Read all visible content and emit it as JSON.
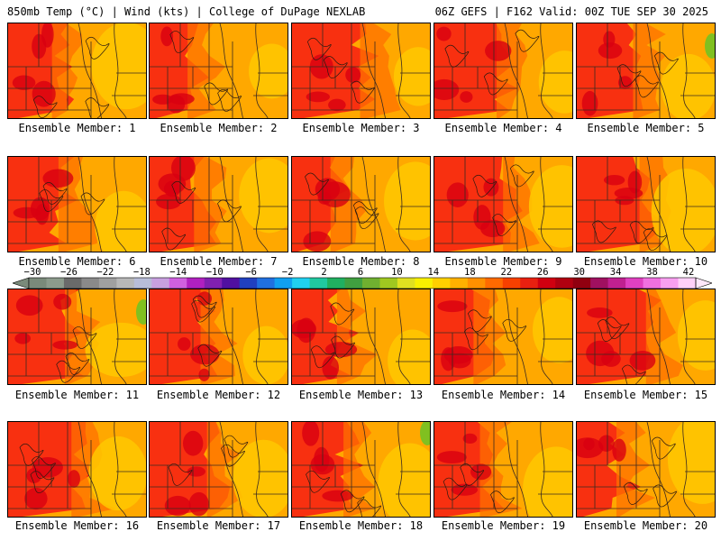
{
  "header": {
    "title_left": "850mb Temp (°C) | Wind (kts) | College of DuPage NEXLAB",
    "title_right": "06Z GEFS | F162 Valid: 00Z TUE SEP 30 2025"
  },
  "colorbar": {
    "ticks": [
      "-30",
      "-26",
      "-22",
      "-18",
      "-14",
      "-10",
      "-6",
      "-2",
      "2",
      "6",
      "10",
      "14",
      "18",
      "22",
      "26",
      "30",
      "34",
      "38",
      "42"
    ],
    "colors": [
      "#7a8a7a",
      "#8c9b8c",
      "#6a6a6a",
      "#8a8a8a",
      "#a0a0a0",
      "#b8b8b8",
      "#b8bdd8",
      "#c8a0e0",
      "#d060e0",
      "#b020c0",
      "#8020b0",
      "#5010a0",
      "#2040c0",
      "#2070e0",
      "#10a0f0",
      "#20d0f0",
      "#20c8a0",
      "#20b060",
      "#40a040",
      "#70b030",
      "#a0c820",
      "#e0e020",
      "#f8f000",
      "#ffd000",
      "#ffb000",
      "#ff9000",
      "#ff6a00",
      "#f84000",
      "#e82010",
      "#d00010",
      "#b00010",
      "#900010",
      "#a01060",
      "#c02090",
      "#e040c0",
      "#f070e0",
      "#f8a0f0",
      "#ffd0f8"
    ]
  },
  "members": [
    {
      "label": "Ensemble Member: 1"
    },
    {
      "label": "Ensemble Member: 2"
    },
    {
      "label": "Ensemble Member: 3"
    },
    {
      "label": "Ensemble Member: 4"
    },
    {
      "label": "Ensemble Member: 5"
    },
    {
      "label": "Ensemble Member: 6"
    },
    {
      "label": "Ensemble Member: 7"
    },
    {
      "label": "Ensemble Member: 8"
    },
    {
      "label": "Ensemble Member: 9"
    },
    {
      "label": "Ensemble Member: 10"
    },
    {
      "label": "Ensemble Member: 11"
    },
    {
      "label": "Ensemble Member: 12"
    },
    {
      "label": "Ensemble Member: 13"
    },
    {
      "label": "Ensemble Member: 14"
    },
    {
      "label": "Ensemble Member: 15"
    },
    {
      "label": "Ensemble Member: 16"
    },
    {
      "label": "Ensemble Member: 17"
    },
    {
      "label": "Ensemble Member: 18"
    },
    {
      "label": "Ensemble Member: 19"
    },
    {
      "label": "Ensemble Member: 20"
    }
  ]
}
